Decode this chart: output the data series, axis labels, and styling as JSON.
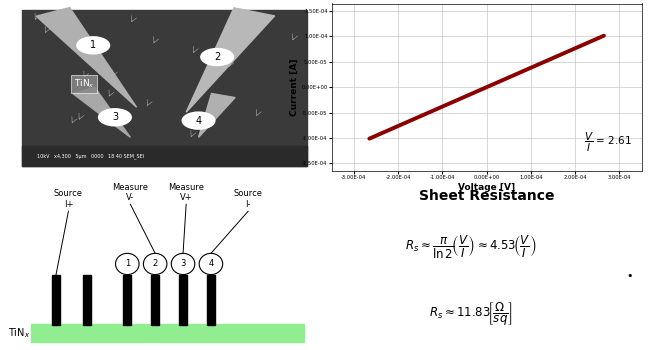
{
  "sem_bg_color": "#3a3a3a",
  "sem_probe_color": "#c0c0c0",
  "sem_border_color": "#ffffff",
  "sem_label": "TiN$_x$",
  "sem_scale_text": "10kV   x4,300   5μm   0000   18 40 SEM_SEI",
  "probe_circle_color": "#ffffff",
  "probe_circle_edge": "#000000",
  "tinx_color": "#90EE90",
  "tinx_bar_color": "#000000",
  "iv_xlabel": "Voltage [V]",
  "iv_ylabel": "Current [A]",
  "iv_line_color": "#8B0000",
  "iv_ytick_labels": [
    "-1.50E-04",
    "-1.00E-04",
    "-5.00E-05",
    "0.00E+00",
    "5.00E-05",
    "1.00E-04",
    "1.50E-04"
  ],
  "iv_ytick_vals": [
    -0.00015,
    -0.0001,
    -5e-05,
    0.0,
    5e-05,
    0.0001,
    0.00015
  ],
  "iv_xtick_vals": [
    -0.0003,
    -0.0002,
    -0.0001,
    0,
    0.0001,
    0.0002,
    0.0003
  ],
  "iv_xtick_labels": [
    "-3.00E-04",
    "-2.00E-04",
    "-1.00E-04",
    "0.00E+00",
    "1.00E-04",
    "2.00E-04",
    "3.00E-04"
  ],
  "iv_xlim": [
    -0.00035,
    0.00035
  ],
  "iv_ylim": [
    -0.000165,
    0.000165
  ],
  "sheet_resistance_title": "Sheet Resistance",
  "background_color": "#ffffff",
  "grid_color": "#c8c8c8"
}
